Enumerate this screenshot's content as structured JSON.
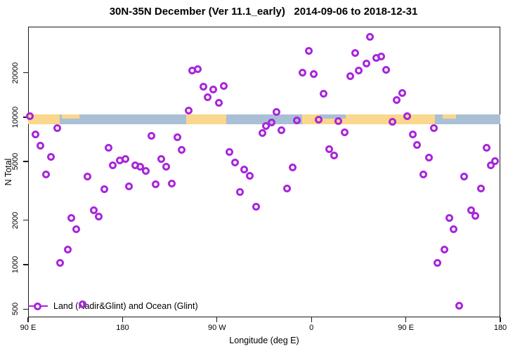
{
  "page": {
    "title": "30N-35N December (Ver 11.1_early)   2014-09-06 to 2018-12-31"
  },
  "chart_data": {
    "type": "scatter",
    "title": "30N-35N December (Ver 11.1_early)   2014-09-06 to 2018-12-31",
    "xlabel": "Longitude (deg E)",
    "ylabel": "N Total",
    "x_axis": {
      "min": 90,
      "max": 540,
      "note": "longitude axis wraps: 90E to 180 to 90W to 0 to 90E to 180",
      "ticks": [
        {
          "v": 90,
          "label": "90 E"
        },
        {
          "v": 180,
          "label": "180"
        },
        {
          "v": 270,
          "label": "90 W"
        },
        {
          "v": 360,
          "label": "0"
        },
        {
          "v": 450,
          "label": "90 E"
        },
        {
          "v": 540,
          "label": "180"
        }
      ]
    },
    "y_axis": {
      "scale": "log",
      "min": 440,
      "max": 41000,
      "ticks": [
        {
          "v": 500,
          "label": "500"
        },
        {
          "v": 1000,
          "label": "1000"
        },
        {
          "v": 2000,
          "label": "2000"
        },
        {
          "v": 5000,
          "label": "5000"
        },
        {
          "v": 10000,
          "label": "10000"
        },
        {
          "v": 20000,
          "label": "20000"
        }
      ]
    },
    "legend": {
      "label": "Land (Nadir&Glint) and Ocean (Glint)",
      "position": "bottom-left"
    },
    "colors": {
      "marker": "#A825DC",
      "land": "#FAD78C",
      "ocean": "#A9BFD6",
      "axis": "#1a1a1a"
    },
    "map_band": {
      "n_center": 10000,
      "segments": [
        {
          "from": 90,
          "to": 540,
          "type": "ocean",
          "part": "full"
        },
        {
          "from": 90,
          "to": 120,
          "type": "land",
          "part": "full"
        },
        {
          "from": 122,
          "to": 139,
          "type": "land",
          "part": "top"
        },
        {
          "from": 241,
          "to": 279,
          "type": "land",
          "part": "full"
        },
        {
          "from": 351,
          "to": 478,
          "type": "land",
          "part": "full"
        },
        {
          "from": 368,
          "to": 393,
          "type": "ocean",
          "part": "top"
        },
        {
          "from": 485,
          "to": 498,
          "type": "land",
          "part": "top"
        }
      ]
    },
    "points": [
      {
        "lon": 91.5,
        "n": 10100
      },
      {
        "lon": 96.7,
        "n": 7660
      },
      {
        "lon": 101.4,
        "n": 6380
      },
      {
        "lon": 106.9,
        "n": 4110
      },
      {
        "lon": 111.9,
        "n": 5350
      },
      {
        "lon": 117.5,
        "n": 8390
      },
      {
        "lon": 120.3,
        "n": 1030
      },
      {
        "lon": 127.5,
        "n": 1260
      },
      {
        "lon": 131.5,
        "n": 2070
      },
      {
        "lon": 136.0,
        "n": 1740
      },
      {
        "lon": 142.0,
        "n": 540
      },
      {
        "lon": 146.4,
        "n": 3940
      },
      {
        "lon": 152.7,
        "n": 2340
      },
      {
        "lon": 157.2,
        "n": 2120
      },
      {
        "lon": 162.5,
        "n": 3230
      },
      {
        "lon": 167.0,
        "n": 6190
      },
      {
        "lon": 171.0,
        "n": 4700
      },
      {
        "lon": 177.7,
        "n": 5070
      },
      {
        "lon": 182.9,
        "n": 5220
      },
      {
        "lon": 186.4,
        "n": 3380
      },
      {
        "lon": 192.3,
        "n": 4730
      },
      {
        "lon": 197.1,
        "n": 4590
      },
      {
        "lon": 202.1,
        "n": 4300
      },
      {
        "lon": 207.4,
        "n": 7440
      },
      {
        "lon": 211.6,
        "n": 3490
      },
      {
        "lon": 217.2,
        "n": 5220
      },
      {
        "lon": 221.4,
        "n": 4620
      },
      {
        "lon": 227.0,
        "n": 3530
      },
      {
        "lon": 232.6,
        "n": 7330
      },
      {
        "lon": 236.4,
        "n": 5990
      },
      {
        "lon": 242.7,
        "n": 11120
      },
      {
        "lon": 246.2,
        "n": 20600
      },
      {
        "lon": 251.8,
        "n": 21150
      },
      {
        "lon": 256.9,
        "n": 16150
      },
      {
        "lon": 261.4,
        "n": 13700
      },
      {
        "lon": 266.3,
        "n": 15300
      },
      {
        "lon": 271.7,
        "n": 12450
      },
      {
        "lon": 276.3,
        "n": 16300
      },
      {
        "lon": 281.7,
        "n": 5780
      },
      {
        "lon": 287.3,
        "n": 4940
      },
      {
        "lon": 291.7,
        "n": 3100
      },
      {
        "lon": 296.2,
        "n": 4430
      },
      {
        "lon": 301.4,
        "n": 4000
      },
      {
        "lon": 307.0,
        "n": 2460
      },
      {
        "lon": 313.2,
        "n": 7830
      },
      {
        "lon": 316.5,
        "n": 8740
      },
      {
        "lon": 322.1,
        "n": 9160
      },
      {
        "lon": 326.6,
        "n": 10880
      },
      {
        "lon": 331.1,
        "n": 8120
      },
      {
        "lon": 336.6,
        "n": 3270
      },
      {
        "lon": 342.2,
        "n": 4580
      },
      {
        "lon": 346.3,
        "n": 9520
      },
      {
        "lon": 351.8,
        "n": 20100
      },
      {
        "lon": 357.2,
        "n": 28100
      },
      {
        "lon": 362.3,
        "n": 19600
      },
      {
        "lon": 366.7,
        "n": 9600
      },
      {
        "lon": 371.4,
        "n": 14350
      },
      {
        "lon": 376.8,
        "n": 6050
      },
      {
        "lon": 381.7,
        "n": 5490
      },
      {
        "lon": 385.7,
        "n": 9360
      },
      {
        "lon": 391.8,
        "n": 7890
      },
      {
        "lon": 396.9,
        "n": 18950
      },
      {
        "lon": 401.8,
        "n": 27100
      },
      {
        "lon": 404.9,
        "n": 20700
      },
      {
        "lon": 412.5,
        "n": 23100
      },
      {
        "lon": 415.9,
        "n": 34800
      },
      {
        "lon": 421.5,
        "n": 25300
      },
      {
        "lon": 426.6,
        "n": 25800
      },
      {
        "lon": 431.1,
        "n": 20900
      },
      {
        "lon": 437.1,
        "n": 9270
      },
      {
        "lon": 441.1,
        "n": 13000
      },
      {
        "lon": 446.4,
        "n": 14630
      },
      {
        "lon": 451.1,
        "n": 10190
      },
      {
        "lon": 456.3,
        "n": 7620
      },
      {
        "lon": 460.7,
        "n": 6450
      },
      {
        "lon": 466.4,
        "n": 4110
      },
      {
        "lon": 471.8,
        "n": 5310
      },
      {
        "lon": 476.8,
        "n": 8390
      },
      {
        "lon": 480.1,
        "n": 1030
      },
      {
        "lon": 486.8,
        "n": 1260
      },
      {
        "lon": 491.3,
        "n": 2080
      },
      {
        "lon": 495.5,
        "n": 1740
      },
      {
        "lon": 501.1,
        "n": 530
      },
      {
        "lon": 505.8,
        "n": 3940
      },
      {
        "lon": 512.3,
        "n": 2340
      },
      {
        "lon": 516.3,
        "n": 2140
      },
      {
        "lon": 521.9,
        "n": 3270
      },
      {
        "lon": 527.0,
        "n": 6190
      },
      {
        "lon": 531.2,
        "n": 4730
      },
      {
        "lon": 534.7,
        "n": 5030
      }
    ]
  }
}
